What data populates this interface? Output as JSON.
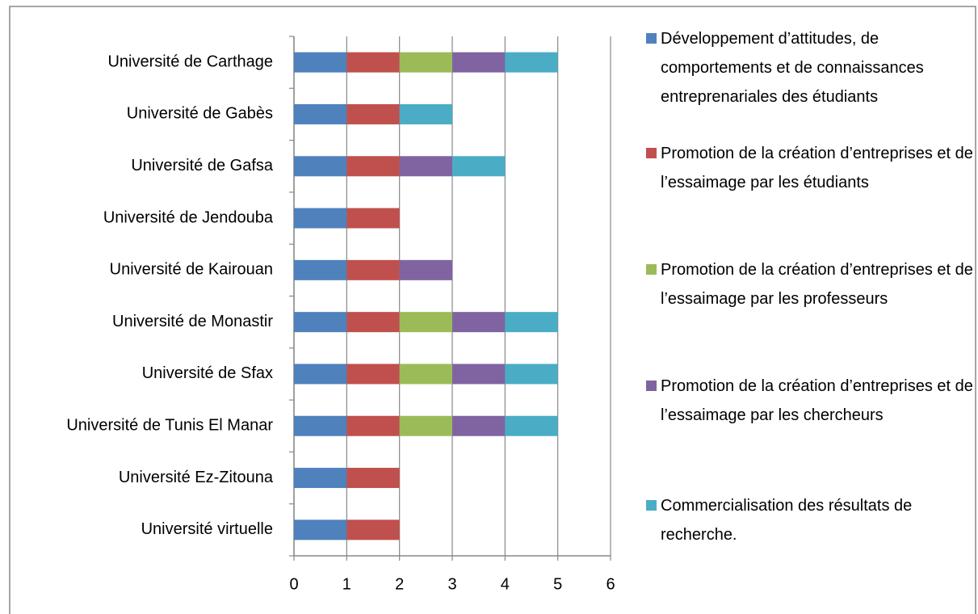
{
  "chart_data": {
    "type": "stacked-hbar",
    "categories": [
      "Université de Carthage",
      "Université de Gabès",
      "Université de Gafsa",
      "Université de Jendouba",
      "Université de Kairouan",
      "Université de Monastir",
      "Université de Sfax",
      "Université de Tunis El Manar",
      "Université Ez-Zitouna",
      "Université virtuelle"
    ],
    "series": [
      {
        "name": "Développement d’attitudes, de comportements et de connaissances entreprenariales des étudiants",
        "color": "#4f81bd",
        "values": [
          1,
          1,
          1,
          1,
          1,
          1,
          1,
          1,
          1,
          1
        ]
      },
      {
        "name": "Promotion de la création d’entreprises et de l’essaimage par les étudiants",
        "color": "#c0504d",
        "values": [
          1,
          1,
          1,
          1,
          1,
          1,
          1,
          1,
          1,
          1
        ]
      },
      {
        "name": "Promotion de la création d’entreprises et de l’essaimage par les professeurs",
        "color": "#9bbb59",
        "values": [
          1,
          0,
          0,
          0,
          0,
          1,
          1,
          1,
          0,
          0
        ]
      },
      {
        "name": "Promotion de la création d’entreprises et de l’essaimage par les chercheurs",
        "color": "#8064a2",
        "values": [
          1,
          0,
          1,
          0,
          1,
          1,
          1,
          1,
          0,
          0
        ]
      },
      {
        "name": "Commercialisation des résultats de recherche.",
        "color": "#4bacc6",
        "values": [
          1,
          1,
          1,
          0,
          0,
          1,
          1,
          1,
          0,
          0
        ]
      }
    ],
    "xlim": [
      0,
      6
    ],
    "xticks": [
      0,
      1,
      2,
      3,
      4,
      5,
      6
    ],
    "grid": true,
    "legend": "right"
  }
}
